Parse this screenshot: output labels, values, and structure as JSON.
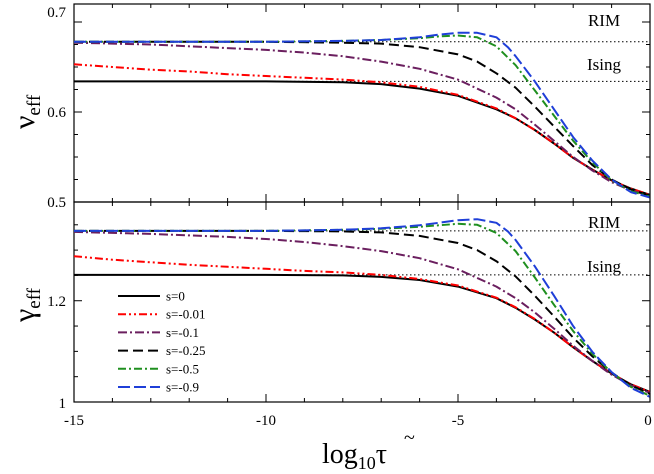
{
  "chart_data": [
    {
      "type": "line",
      "panel": "top",
      "ylabel": "ν",
      "ylabel_sub": "eff",
      "ylim": [
        0.5,
        0.72
      ],
      "yticks": [
        "0.5",
        "0.6",
        "0.7"
      ],
      "xlim": [
        -15,
        0
      ],
      "xticks": [
        "-15",
        "-10",
        "-5",
        "0"
      ],
      "references": [
        {
          "name": "RIM",
          "label": "RIM",
          "value": 0.678
        },
        {
          "name": "Ising",
          "label": "Ising",
          "value": 0.634
        }
      ],
      "series": [
        {
          "name": "s=0",
          "color": "#000000",
          "dash": "",
          "points": [
            [
              -15,
              0.634
            ],
            [
              -12,
              0.634
            ],
            [
              -10,
              0.634
            ],
            [
              -8,
              0.633
            ],
            [
              -7,
              0.631
            ],
            [
              -6,
              0.626
            ],
            [
              -5,
              0.618
            ],
            [
              -4,
              0.603
            ],
            [
              -3.5,
              0.593
            ],
            [
              -3,
              0.58
            ],
            [
              -2.5,
              0.565
            ],
            [
              -2,
              0.549
            ],
            [
              -1.5,
              0.536
            ],
            [
              -1,
              0.524
            ],
            [
              -0.5,
              0.515
            ],
            [
              0,
              0.508
            ]
          ]
        },
        {
          "name": "s=-0.01",
          "color": "#ff0000",
          "dash": "8 3 2 3 2 3",
          "points": [
            [
              -15,
              0.653
            ],
            [
              -14,
              0.65
            ],
            [
              -13,
              0.647
            ],
            [
              -12,
              0.645
            ],
            [
              -11,
              0.642
            ],
            [
              -10,
              0.64
            ],
            [
              -9,
              0.638
            ],
            [
              -8,
              0.636
            ],
            [
              -7,
              0.633
            ],
            [
              -6,
              0.628
            ],
            [
              -5,
              0.619
            ],
            [
              -4,
              0.604
            ],
            [
              -3.5,
              0.593
            ],
            [
              -3,
              0.58
            ],
            [
              -2.5,
              0.565
            ],
            [
              -2,
              0.549
            ],
            [
              -1.5,
              0.536
            ],
            [
              -1,
              0.524
            ],
            [
              -0.5,
              0.515
            ],
            [
              0,
              0.508
            ]
          ]
        },
        {
          "name": "s=-0.1",
          "color": "#6b1f5f",
          "dash": "9 3 2 3",
          "points": [
            [
              -15,
              0.677
            ],
            [
              -13,
              0.675
            ],
            [
              -11,
              0.671
            ],
            [
              -10,
              0.669
            ],
            [
              -9,
              0.666
            ],
            [
              -8,
              0.662
            ],
            [
              -7,
              0.656
            ],
            [
              -6,
              0.648
            ],
            [
              -5,
              0.636
            ],
            [
              -4,
              0.616
            ],
            [
              -3.5,
              0.603
            ],
            [
              -3,
              0.586
            ],
            [
              -2.5,
              0.568
            ],
            [
              -2,
              0.55
            ],
            [
              -1.5,
              0.535
            ],
            [
              -1,
              0.522
            ],
            [
              -0.5,
              0.513
            ],
            [
              0,
              0.507
            ]
          ]
        },
        {
          "name": "s=-0.25",
          "color": "#000000",
          "dash": "10 5",
          "points": [
            [
              -15,
              0.678
            ],
            [
              -12,
              0.678
            ],
            [
              -10,
              0.678
            ],
            [
              -8,
              0.677
            ],
            [
              -7,
              0.676
            ],
            [
              -6,
              0.672
            ],
            [
              -5,
              0.664
            ],
            [
              -4.5,
              0.656
            ],
            [
              -4,
              0.643
            ],
            [
              -3.5,
              0.627
            ],
            [
              -3,
              0.606
            ],
            [
              -2.5,
              0.584
            ],
            [
              -2,
              0.562
            ],
            [
              -1.5,
              0.541
            ],
            [
              -1,
              0.525
            ],
            [
              -0.5,
              0.514
            ],
            [
              0,
              0.507
            ]
          ]
        },
        {
          "name": "s=-0.5",
          "color": "#1f8f1f",
          "dash": "8 3 2 3",
          "points": [
            [
              -15,
              0.678
            ],
            [
              -12,
              0.678
            ],
            [
              -10,
              0.678
            ],
            [
              -8,
              0.679
            ],
            [
              -7,
              0.68
            ],
            [
              -6,
              0.682
            ],
            [
              -5.5,
              0.684
            ],
            [
              -5,
              0.685
            ],
            [
              -4.5,
              0.683
            ],
            [
              -4,
              0.673
            ],
            [
              -3.5,
              0.652
            ],
            [
              -3,
              0.624
            ],
            [
              -2.5,
              0.596
            ],
            [
              -2,
              0.568
            ],
            [
              -1.5,
              0.544
            ],
            [
              -1,
              0.524
            ],
            [
              -0.5,
              0.512
            ],
            [
              0,
              0.506
            ]
          ]
        },
        {
          "name": "s=-0.9",
          "color": "#1f3fd8",
          "dash": "12 4",
          "points": [
            [
              -15,
              0.678
            ],
            [
              -12,
              0.678
            ],
            [
              -10,
              0.678
            ],
            [
              -8,
              0.679
            ],
            [
              -7,
              0.68
            ],
            [
              -6,
              0.683
            ],
            [
              -5.5,
              0.686
            ],
            [
              -5,
              0.688
            ],
            [
              -4.5,
              0.688
            ],
            [
              -4,
              0.683
            ],
            [
              -3.7,
              0.672
            ],
            [
              -3.5,
              0.662
            ],
            [
              -3,
              0.634
            ],
            [
              -2.5,
              0.603
            ],
            [
              -2,
              0.572
            ],
            [
              -1.5,
              0.546
            ],
            [
              -1,
              0.525
            ],
            [
              -0.5,
              0.511
            ],
            [
              0,
              0.505
            ]
          ]
        }
      ]
    },
    {
      "type": "line",
      "panel": "bottom",
      "ylabel": "γ",
      "ylabel_sub": "eff",
      "ylim": [
        1.0,
        1.395
      ],
      "yticks": [
        "1",
        "1.2"
      ],
      "xlim": [
        -15,
        0
      ],
      "xticks": [
        "-15",
        "-10",
        "-5",
        "0"
      ],
      "xlabel": "log",
      "xlabel_sub": "10",
      "xlabel_var": "τ",
      "xlabel_accent": "~",
      "references": [
        {
          "name": "RIM",
          "label": "RIM",
          "value": 1.338
        },
        {
          "name": "Ising",
          "label": "Ising",
          "value": 1.251
        }
      ],
      "legend": {
        "position": "lower-left"
      },
      "series": [
        {
          "name": "s=0",
          "color": "#000000",
          "dash": "",
          "points": [
            [
              -15,
              1.251
            ],
            [
              -12,
              1.251
            ],
            [
              -10,
              1.251
            ],
            [
              -8,
              1.25
            ],
            [
              -7,
              1.247
            ],
            [
              -6,
              1.241
            ],
            [
              -5,
              1.228
            ],
            [
              -4,
              1.205
            ],
            [
              -3.5,
              1.186
            ],
            [
              -3,
              1.163
            ],
            [
              -2.5,
              1.137
            ],
            [
              -2,
              1.108
            ],
            [
              -1.5,
              1.081
            ],
            [
              -1,
              1.056
            ],
            [
              -0.5,
              1.035
            ],
            [
              0,
              1.02
            ]
          ]
        },
        {
          "name": "s=-0.01",
          "color": "#ff0000",
          "dash": "8 3 2 3 2 3",
          "points": [
            [
              -15,
              1.288
            ],
            [
              -14,
              1.281
            ],
            [
              -13,
              1.276
            ],
            [
              -12,
              1.271
            ],
            [
              -11,
              1.267
            ],
            [
              -10,
              1.263
            ],
            [
              -9,
              1.259
            ],
            [
              -8,
              1.256
            ],
            [
              -7,
              1.251
            ],
            [
              -6,
              1.243
            ],
            [
              -5,
              1.23
            ],
            [
              -4,
              1.206
            ],
            [
              -3.5,
              1.187
            ],
            [
              -3,
              1.164
            ],
            [
              -2.5,
              1.137
            ],
            [
              -2,
              1.108
            ],
            [
              -1.5,
              1.081
            ],
            [
              -1,
              1.056
            ],
            [
              -0.5,
              1.035
            ],
            [
              0,
              1.02
            ]
          ]
        },
        {
          "name": "s=-0.1",
          "color": "#6b1f5f",
          "dash": "9 3 2 3",
          "points": [
            [
              -15,
              1.336
            ],
            [
              -13,
              1.332
            ],
            [
              -11,
              1.326
            ],
            [
              -10,
              1.322
            ],
            [
              -9,
              1.316
            ],
            [
              -8,
              1.308
            ],
            [
              -7,
              1.298
            ],
            [
              -6,
              1.284
            ],
            [
              -5,
              1.262
            ],
            [
              -4,
              1.228
            ],
            [
              -3.5,
              1.205
            ],
            [
              -3,
              1.177
            ],
            [
              -2.5,
              1.145
            ],
            [
              -2,
              1.111
            ],
            [
              -1.5,
              1.081
            ],
            [
              -1,
              1.054
            ],
            [
              -0.5,
              1.033
            ],
            [
              0,
              1.018
            ]
          ]
        },
        {
          "name": "s=-0.25",
          "color": "#000000",
          "dash": "10 5",
          "points": [
            [
              -15,
              1.338
            ],
            [
              -12,
              1.338
            ],
            [
              -10,
              1.338
            ],
            [
              -8,
              1.337
            ],
            [
              -7,
              1.335
            ],
            [
              -6,
              1.328
            ],
            [
              -5,
              1.314
            ],
            [
              -4.5,
              1.3
            ],
            [
              -4,
              1.278
            ],
            [
              -3.5,
              1.248
            ],
            [
              -3,
              1.21
            ],
            [
              -2.5,
              1.169
            ],
            [
              -2,
              1.127
            ],
            [
              -1.5,
              1.09
            ],
            [
              -1,
              1.058
            ],
            [
              -0.5,
              1.033
            ],
            [
              0,
              1.016
            ]
          ]
        },
        {
          "name": "s=-0.5",
          "color": "#1f8f1f",
          "dash": "8 3 2 3",
          "points": [
            [
              -15,
              1.338
            ],
            [
              -12,
              1.338
            ],
            [
              -10,
              1.338
            ],
            [
              -8,
              1.34
            ],
            [
              -7,
              1.342
            ],
            [
              -6,
              1.346
            ],
            [
              -5.5,
              1.349
            ],
            [
              -5,
              1.352
            ],
            [
              -4.5,
              1.35
            ],
            [
              -4,
              1.334
            ],
            [
              -3.5,
              1.298
            ],
            [
              -3,
              1.246
            ],
            [
              -2.5,
              1.192
            ],
            [
              -2,
              1.14
            ],
            [
              -1.5,
              1.095
            ],
            [
              -1,
              1.058
            ],
            [
              -0.5,
              1.03
            ],
            [
              0,
              1.012
            ]
          ]
        },
        {
          "name": "s=-0.9",
          "color": "#1f3fd8",
          "dash": "12 4",
          "points": [
            [
              -15,
              1.338
            ],
            [
              -12,
              1.338
            ],
            [
              -10,
              1.338
            ],
            [
              -8,
              1.34
            ],
            [
              -7,
              1.343
            ],
            [
              -6,
              1.349
            ],
            [
              -5.5,
              1.354
            ],
            [
              -5,
              1.359
            ],
            [
              -4.5,
              1.361
            ],
            [
              -4,
              1.354
            ],
            [
              -3.7,
              1.337
            ],
            [
              -3.5,
              1.32
            ],
            [
              -3,
              1.268
            ],
            [
              -2.5,
              1.21
            ],
            [
              -2,
              1.15
            ],
            [
              -1.5,
              1.099
            ],
            [
              -1,
              1.059
            ],
            [
              -0.5,
              1.028
            ],
            [
              0,
              1.01
            ]
          ]
        }
      ]
    }
  ]
}
